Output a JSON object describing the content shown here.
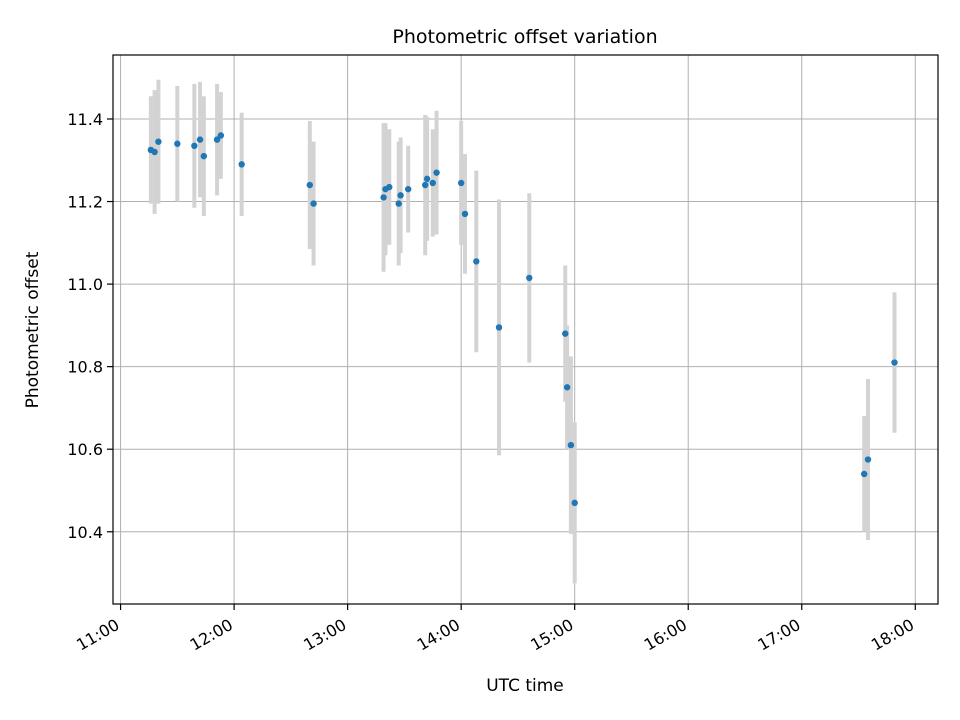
{
  "chart_data": {
    "type": "scatter",
    "title": "Photometric offset variation",
    "xlabel": "UTC time",
    "ylabel": "Photometric offset",
    "x_ticks": [
      "11:00",
      "12:00",
      "13:00",
      "14:00",
      "15:00",
      "16:00",
      "17:00",
      "18:00"
    ],
    "y_ticks": [
      "10.4",
      "10.6",
      "10.8",
      "11.0",
      "11.2",
      "11.4"
    ],
    "xlim": [
      "10:56",
      "18:12"
    ],
    "ylim": [
      10.225,
      11.555
    ],
    "grid": true,
    "marker_color": "#1f77b4",
    "errorbar_color": "#d3d3d3",
    "series": [
      {
        "points": [
          {
            "x": "11:16",
            "y": 11.325,
            "yerr": 0.13
          },
          {
            "x": "11:18",
            "y": 11.32,
            "yerr": 0.15
          },
          {
            "x": "11:20",
            "y": 11.345,
            "yerr": 0.15
          },
          {
            "x": "11:30",
            "y": 11.34,
            "yerr": 0.14
          },
          {
            "x": "11:39",
            "y": 11.335,
            "yerr": 0.15
          },
          {
            "x": "11:42",
            "y": 11.35,
            "yerr": 0.14
          },
          {
            "x": "11:44",
            "y": 11.31,
            "yerr": 0.145
          },
          {
            "x": "11:51",
            "y": 11.35,
            "yerr": 0.135
          },
          {
            "x": "11:53",
            "y": 11.36,
            "yerr": 0.105
          },
          {
            "x": "12:04",
            "y": 11.29,
            "yerr": 0.125
          },
          {
            "x": "12:40",
            "y": 11.24,
            "yerr": 0.155
          },
          {
            "x": "12:42",
            "y": 11.195,
            "yerr": 0.15
          },
          {
            "x": "13:19",
            "y": 11.21,
            "yerr": 0.18
          },
          {
            "x": "13:20",
            "y": 11.23,
            "yerr": 0.16
          },
          {
            "x": "13:22",
            "y": 11.235,
            "yerr": 0.14
          },
          {
            "x": "13:27",
            "y": 11.195,
            "yerr": 0.15
          },
          {
            "x": "13:28",
            "y": 11.215,
            "yerr": 0.14
          },
          {
            "x": "13:32",
            "y": 11.23,
            "yerr": 0.105
          },
          {
            "x": "13:41",
            "y": 11.24,
            "yerr": 0.17
          },
          {
            "x": "13:42",
            "y": 11.255,
            "yerr": 0.15
          },
          {
            "x": "13:45",
            "y": 11.245,
            "yerr": 0.13
          },
          {
            "x": "13:47",
            "y": 11.27,
            "yerr": 0.15
          },
          {
            "x": "13:60",
            "y": 11.245,
            "yerr": 0.15
          },
          {
            "x": "14:02",
            "y": 11.17,
            "yerr": 0.145
          },
          {
            "x": "14:08",
            "y": 11.055,
            "yerr": 0.22
          },
          {
            "x": "14:20",
            "y": 10.895,
            "yerr": 0.31
          },
          {
            "x": "14:36",
            "y": 11.015,
            "yerr": 0.205
          },
          {
            "x": "14:55",
            "y": 10.88,
            "yerr": 0.165
          },
          {
            "x": "14:56",
            "y": 10.75,
            "yerr": 0.15
          },
          {
            "x": "14:58",
            "y": 10.61,
            "yerr": 0.215
          },
          {
            "x": "15:00",
            "y": 10.47,
            "yerr": 0.195
          },
          {
            "x": "17:33",
            "y": 10.54,
            "yerr": 0.14
          },
          {
            "x": "17:35",
            "y": 10.575,
            "yerr": 0.195
          },
          {
            "x": "17:49",
            "y": 10.81,
            "yerr": 0.17
          }
        ]
      }
    ]
  }
}
